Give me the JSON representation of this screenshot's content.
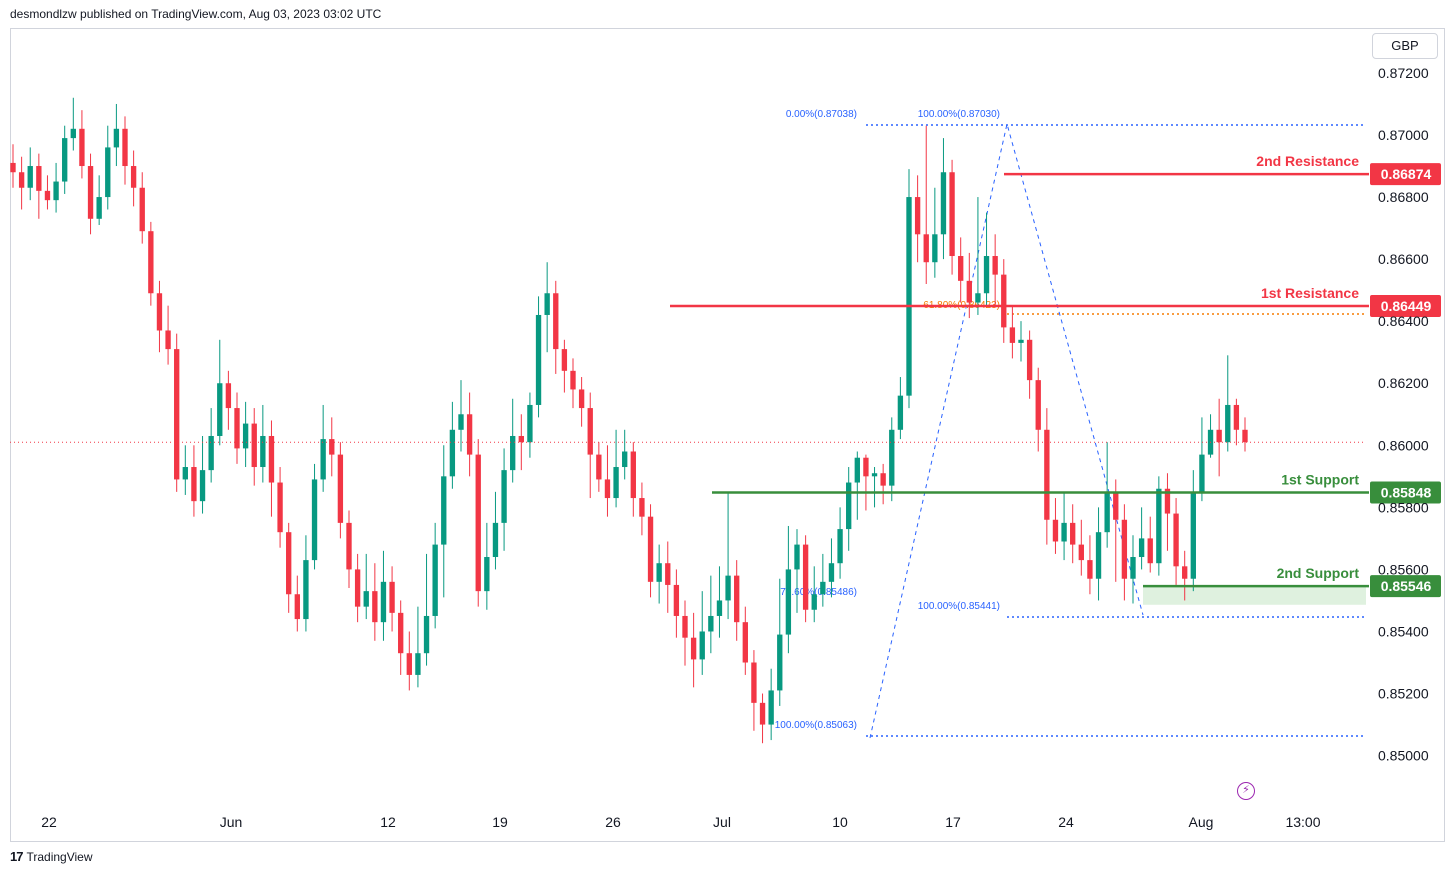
{
  "header": {
    "publisher": "desmondlzw published on TradingView.com, Aug 03, 2023 03:02 UTC"
  },
  "footer": {
    "brand": "TradingView",
    "logo_mark": "17"
  },
  "currency": "GBP",
  "chart_data": {
    "type": "candlestick",
    "symbol_currency": "GBP",
    "price_axis": {
      "min": 0.849,
      "max": 0.8725,
      "ticks": [
        "0.87200",
        "0.87000",
        "0.86800",
        "0.86600",
        "0.86400",
        "0.86200",
        "0.86000",
        "0.85800",
        "0.85600",
        "0.85400",
        "0.85200",
        "0.85000"
      ]
    },
    "x_ticks": [
      {
        "label": "22",
        "date": "2023-05-22"
      },
      {
        "label": "Jun",
        "date": "2023-06-01"
      },
      {
        "label": "12",
        "date": "2023-06-12"
      },
      {
        "label": "19",
        "date": "2023-06-19"
      },
      {
        "label": "26",
        "date": "2023-06-26"
      },
      {
        "label": "Jul",
        "date": "2023-07-03"
      },
      {
        "label": "10",
        "date": "2023-07-10"
      },
      {
        "label": "17",
        "date": "2023-07-17"
      },
      {
        "label": "24",
        "date": "2023-07-24"
      },
      {
        "label": "Aug",
        "date": "2023-08-01"
      },
      {
        "label": "13:00",
        "date": "2023-08-03 13:00"
      }
    ],
    "last_price": 0.8601,
    "levels": [
      {
        "name": "2nd Resistance",
        "price": 0.86874,
        "price_label": "0.86874",
        "color": "#f23645",
        "kind": "resistance"
      },
      {
        "name": "1st Resistance",
        "price": 0.86449,
        "price_label": "0.86449",
        "color": "#f23645",
        "kind": "resistance"
      },
      {
        "name": "1st Support",
        "price": 0.85848,
        "price_label": "0.85848",
        "color": "#388e3c",
        "kind": "support"
      },
      {
        "name": "2nd Support",
        "price": 0.85546,
        "price_label": "0.85546",
        "color": "#388e3c",
        "kind": "support"
      }
    ],
    "fib_labels": [
      {
        "text": "0.00%(0.87038)",
        "price": 0.87038
      },
      {
        "text": "100.00%(0.87030)",
        "price": 0.8703
      },
      {
        "text": "61.80%(0.86423)",
        "price": 0.86423
      },
      {
        "text": "78.60%(0.85486)",
        "price": 0.85486
      },
      {
        "text": "100.00%(0.85441)",
        "price": 0.85441
      },
      {
        "text": "100.00%(0.85063)",
        "price": 0.85063
      }
    ],
    "candles": [
      [
        0.8691,
        0.8688,
        0.8697,
        0.8683
      ],
      [
        0.8688,
        0.8683,
        0.8693,
        0.8676
      ],
      [
        0.8683,
        0.869,
        0.8696,
        0.8679
      ],
      [
        0.869,
        0.8682,
        0.8694,
        0.8673
      ],
      [
        0.8682,
        0.8679,
        0.8687,
        0.8676
      ],
      [
        0.8679,
        0.8685,
        0.8691,
        0.8675
      ],
      [
        0.8685,
        0.8699,
        0.8703,
        0.8681
      ],
      [
        0.8699,
        0.8702,
        0.8712,
        0.8695
      ],
      [
        0.8702,
        0.869,
        0.8708,
        0.8686
      ],
      [
        0.869,
        0.8673,
        0.8694,
        0.8668
      ],
      [
        0.8673,
        0.868,
        0.8687,
        0.8671
      ],
      [
        0.868,
        0.8696,
        0.8703,
        0.8676
      ],
      [
        0.8696,
        0.8702,
        0.871,
        0.869
      ],
      [
        0.8702,
        0.869,
        0.8706,
        0.8684
      ],
      [
        0.869,
        0.8683,
        0.8695,
        0.8677
      ],
      [
        0.8683,
        0.8669,
        0.8688,
        0.8665
      ],
      [
        0.8669,
        0.8649,
        0.8672,
        0.8645
      ],
      [
        0.8649,
        0.8637,
        0.8653,
        0.863
      ],
      [
        0.8637,
        0.8631,
        0.8645,
        0.8626
      ],
      [
        0.8631,
        0.8589,
        0.8636,
        0.8585
      ],
      [
        0.8589,
        0.8593,
        0.86,
        0.8584
      ],
      [
        0.8593,
        0.8582,
        0.86,
        0.8577
      ],
      [
        0.8582,
        0.8592,
        0.8603,
        0.8578
      ],
      [
        0.8592,
        0.8603,
        0.8612,
        0.8588
      ],
      [
        0.8603,
        0.862,
        0.8634,
        0.86
      ],
      [
        0.862,
        0.8612,
        0.8624,
        0.8605
      ],
      [
        0.8612,
        0.8599,
        0.8617,
        0.8594
      ],
      [
        0.8599,
        0.8607,
        0.8614,
        0.8593
      ],
      [
        0.8607,
        0.8593,
        0.8612,
        0.8587
      ],
      [
        0.8593,
        0.8603,
        0.8613,
        0.8588
      ],
      [
        0.8603,
        0.8588,
        0.8608,
        0.8577
      ],
      [
        0.8588,
        0.8572,
        0.8593,
        0.8567
      ],
      [
        0.8572,
        0.8552,
        0.8575,
        0.8546
      ],
      [
        0.8552,
        0.8544,
        0.8558,
        0.854
      ],
      [
        0.8544,
        0.8563,
        0.8571,
        0.854
      ],
      [
        0.8563,
        0.8589,
        0.8594,
        0.856
      ],
      [
        0.8589,
        0.8602,
        0.8613,
        0.8585
      ],
      [
        0.8602,
        0.8597,
        0.8609,
        0.859
      ],
      [
        0.8597,
        0.8575,
        0.8601,
        0.857
      ],
      [
        0.8575,
        0.856,
        0.8579,
        0.8554
      ],
      [
        0.856,
        0.8548,
        0.8565,
        0.8543
      ],
      [
        0.8548,
        0.8553,
        0.8565,
        0.8544
      ],
      [
        0.8553,
        0.8543,
        0.8562,
        0.8537
      ],
      [
        0.8543,
        0.8556,
        0.8566,
        0.8537
      ],
      [
        0.8556,
        0.8546,
        0.8561,
        0.854
      ],
      [
        0.8546,
        0.8533,
        0.855,
        0.8526
      ],
      [
        0.8533,
        0.8526,
        0.854,
        0.8521
      ],
      [
        0.8526,
        0.8533,
        0.8548,
        0.8522
      ],
      [
        0.8533,
        0.8545,
        0.8565,
        0.8529
      ],
      [
        0.8545,
        0.8568,
        0.8575,
        0.8541
      ],
      [
        0.8568,
        0.859,
        0.86,
        0.8551
      ],
      [
        0.859,
        0.8605,
        0.8614,
        0.8586
      ],
      [
        0.8605,
        0.861,
        0.8621,
        0.8598
      ],
      [
        0.861,
        0.8597,
        0.8617,
        0.859
      ],
      [
        0.8597,
        0.8553,
        0.8602,
        0.8548
      ],
      [
        0.8553,
        0.8564,
        0.8575,
        0.8547
      ],
      [
        0.8564,
        0.8575,
        0.8585,
        0.856
      ],
      [
        0.8575,
        0.8592,
        0.8599,
        0.8566
      ],
      [
        0.8592,
        0.8603,
        0.8615,
        0.8588
      ],
      [
        0.8603,
        0.8601,
        0.861,
        0.8592
      ],
      [
        0.8601,
        0.8613,
        0.8617,
        0.8596
      ],
      [
        0.8613,
        0.8642,
        0.8648,
        0.8609
      ],
      [
        0.8642,
        0.8649,
        0.8659,
        0.863
      ],
      [
        0.8649,
        0.8631,
        0.8653,
        0.8623
      ],
      [
        0.8631,
        0.8624,
        0.8634,
        0.8617
      ],
      [
        0.8624,
        0.8618,
        0.8628,
        0.8612
      ],
      [
        0.8618,
        0.8612,
        0.8622,
        0.8606
      ],
      [
        0.8612,
        0.8597,
        0.8617,
        0.8583
      ],
      [
        0.8597,
        0.8589,
        0.8601,
        0.8585
      ],
      [
        0.8589,
        0.8583,
        0.86,
        0.8577
      ],
      [
        0.8583,
        0.8593,
        0.8605,
        0.858
      ],
      [
        0.8593,
        0.8598,
        0.8605,
        0.8589
      ],
      [
        0.8598,
        0.8583,
        0.8601,
        0.8577
      ],
      [
        0.8583,
        0.8577,
        0.8588,
        0.8571
      ],
      [
        0.8577,
        0.8556,
        0.8581,
        0.8551
      ],
      [
        0.8556,
        0.8562,
        0.8568,
        0.8549
      ],
      [
        0.8562,
        0.8555,
        0.8569,
        0.8546
      ],
      [
        0.8555,
        0.8545,
        0.856,
        0.8538
      ],
      [
        0.8545,
        0.8538,
        0.855,
        0.8529
      ],
      [
        0.8538,
        0.8531,
        0.8546,
        0.8522
      ],
      [
        0.8531,
        0.854,
        0.8553,
        0.8526
      ],
      [
        0.854,
        0.8545,
        0.8558,
        0.8533
      ],
      [
        0.8545,
        0.855,
        0.8561,
        0.8538
      ],
      [
        0.855,
        0.8558,
        0.8585,
        0.8544
      ],
      [
        0.8558,
        0.8543,
        0.8563,
        0.8537
      ],
      [
        0.8543,
        0.853,
        0.8548,
        0.8526
      ],
      [
        0.853,
        0.8517,
        0.8534,
        0.8508
      ],
      [
        0.8517,
        0.851,
        0.852,
        0.8504
      ],
      [
        0.851,
        0.8521,
        0.8528,
        0.8505
      ],
      [
        0.8521,
        0.8539,
        0.8557,
        0.8516
      ],
      [
        0.8539,
        0.856,
        0.8574,
        0.8533
      ],
      [
        0.856,
        0.8568,
        0.8573,
        0.8546
      ],
      [
        0.8568,
        0.8547,
        0.8571,
        0.8543
      ],
      [
        0.8547,
        0.8552,
        0.8561,
        0.8543
      ],
      [
        0.8552,
        0.8556,
        0.8565,
        0.8548
      ],
      [
        0.8556,
        0.8562,
        0.857,
        0.8551
      ],
      [
        0.8562,
        0.8573,
        0.858,
        0.8557
      ],
      [
        0.8573,
        0.8588,
        0.8593,
        0.8566
      ],
      [
        0.8588,
        0.8596,
        0.8598,
        0.8576
      ],
      [
        0.8596,
        0.859,
        0.8597,
        0.8579
      ],
      [
        0.859,
        0.8591,
        0.8593,
        0.858
      ],
      [
        0.8591,
        0.8587,
        0.8594,
        0.8581
      ],
      [
        0.8587,
        0.8605,
        0.8609,
        0.8582
      ],
      [
        0.8605,
        0.8616,
        0.8622,
        0.8602
      ],
      [
        0.8616,
        0.868,
        0.8689,
        0.8612
      ],
      [
        0.868,
        0.8668,
        0.8687,
        0.8659
      ],
      [
        0.8668,
        0.8659,
        0.8703,
        0.8652
      ],
      [
        0.8659,
        0.8668,
        0.8683,
        0.8654
      ],
      [
        0.8668,
        0.8688,
        0.8699,
        0.866
      ],
      [
        0.8688,
        0.8661,
        0.8692,
        0.8655
      ],
      [
        0.8661,
        0.8653,
        0.8667,
        0.8646
      ],
      [
        0.8653,
        0.8646,
        0.8662,
        0.8641
      ],
      [
        0.8646,
        0.8649,
        0.868,
        0.8642
      ],
      [
        0.8649,
        0.8661,
        0.8675,
        0.8645
      ],
      [
        0.8661,
        0.8655,
        0.8668,
        0.8645
      ],
      [
        0.8655,
        0.8638,
        0.866,
        0.8633
      ],
      [
        0.8638,
        0.8633,
        0.8645,
        0.8628
      ],
      [
        0.8633,
        0.8634,
        0.864,
        0.8627
      ],
      [
        0.8634,
        0.8621,
        0.8637,
        0.8615
      ],
      [
        0.8621,
        0.8605,
        0.8625,
        0.8598
      ],
      [
        0.8605,
        0.8576,
        0.8612,
        0.8568
      ],
      [
        0.8576,
        0.8569,
        0.8583,
        0.8565
      ],
      [
        0.8569,
        0.8575,
        0.8585,
        0.8563
      ],
      [
        0.8575,
        0.8568,
        0.8581,
        0.8562
      ],
      [
        0.8568,
        0.8563,
        0.8576,
        0.8558
      ],
      [
        0.8563,
        0.8557,
        0.8571,
        0.8552
      ],
      [
        0.8557,
        0.8572,
        0.858,
        0.855
      ],
      [
        0.8572,
        0.8585,
        0.8601,
        0.8567
      ],
      [
        0.8585,
        0.8576,
        0.8589,
        0.8556
      ],
      [
        0.8576,
        0.8557,
        0.8581,
        0.855
      ],
      [
        0.8557,
        0.8564,
        0.8571,
        0.8549
      ],
      [
        0.8564,
        0.857,
        0.858,
        0.856
      ],
      [
        0.857,
        0.8562,
        0.8577,
        0.8559
      ],
      [
        0.8562,
        0.8586,
        0.859,
        0.8558
      ],
      [
        0.8586,
        0.8578,
        0.8591,
        0.8566
      ],
      [
        0.8578,
        0.8561,
        0.8583,
        0.8555
      ],
      [
        0.8561,
        0.8557,
        0.8566,
        0.855
      ],
      [
        0.8557,
        0.8585,
        0.8592,
        0.8553
      ],
      [
        0.8585,
        0.8597,
        0.8609,
        0.8582
      ],
      [
        0.8597,
        0.8605,
        0.861,
        0.8596
      ],
      [
        0.8605,
        0.8601,
        0.8615,
        0.859
      ],
      [
        0.8601,
        0.8613,
        0.8629,
        0.8598
      ],
      [
        0.8613,
        0.8605,
        0.8615,
        0.86
      ],
      [
        0.8605,
        0.8601,
        0.8609,
        0.8598
      ]
    ]
  }
}
